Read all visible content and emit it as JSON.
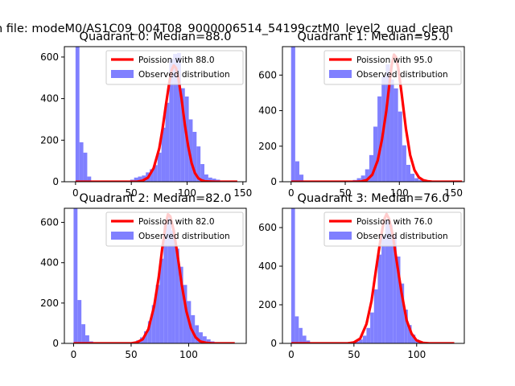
{
  "figure": {
    "suptitle": "n file: modeM0/AS1C09_004T08_9000006514_54199cztM0_level2_quad_clean"
  },
  "colors": {
    "curve": "#ff0000",
    "histogram": "#8080ff",
    "axes": "#000000",
    "background": "#ffffff"
  },
  "chart_data": [
    {
      "type": "bar",
      "title": "Quadrant 0: Median=88.0",
      "legend_position": "top-right",
      "legend": [
        "Poission with 88.0",
        "Observed distribution"
      ],
      "xlim": [
        -10,
        153
      ],
      "ylim": [
        0,
        650
      ],
      "xticks": [
        0,
        50,
        100,
        150
      ],
      "yticks": [
        0,
        200,
        400,
        600
      ],
      "poisson_mean": 88.0,
      "hist": {
        "bin_start": 0,
        "bin_width": 3.5,
        "values": [
          650,
          190,
          140,
          25,
          0,
          0,
          0,
          0,
          0,
          0,
          0,
          0,
          0,
          0,
          10,
          20,
          25,
          30,
          45,
          60,
          80,
          140,
          260,
          380,
          590,
          615,
          620,
          450,
          410,
          300,
          240,
          170,
          85,
          35,
          20,
          15,
          10,
          5,
          5,
          0,
          0
        ]
      },
      "curve": {
        "x": [
          0,
          55,
          60,
          65,
          70,
          75,
          78,
          81,
          84,
          86,
          88,
          90,
          92,
          95,
          98,
          101,
          104,
          107,
          110,
          113,
          116,
          120,
          125,
          145
        ],
        "y": [
          0,
          0,
          5,
          20,
          65,
          160,
          255,
          370,
          475,
          535,
          560,
          547,
          505,
          400,
          275,
          170,
          90,
          42,
          17,
          7,
          2,
          1,
          0,
          0
        ]
      }
    },
    {
      "type": "bar",
      "title": "Quadrant 1: Median=95.0",
      "legend_position": "top-right",
      "legend": [
        "Poission with 95.0",
        "Observed distribution"
      ],
      "xlim": [
        -8,
        160
      ],
      "ylim": [
        0,
        760
      ],
      "xticks": [
        0,
        50,
        100,
        150
      ],
      "yticks": [
        0,
        200,
        400,
        600
      ],
      "poisson_mean": 95.0,
      "hist": {
        "bin_start": 0,
        "bin_width": 3.8,
        "values": [
          760,
          115,
          40,
          0,
          0,
          0,
          0,
          0,
          0,
          0,
          0,
          0,
          0,
          0,
          5,
          10,
          20,
          35,
          70,
          150,
          310,
          480,
          590,
          660,
          575,
          525,
          395,
          205,
          95,
          45,
          20,
          10,
          5,
          5,
          0,
          0,
          0,
          0,
          0,
          0,
          0,
          0
        ]
      },
      "curve": {
        "x": [
          0,
          60,
          65,
          70,
          75,
          80,
          84,
          88,
          91,
          93,
          95,
          97,
          99,
          102,
          106,
          110,
          114,
          118,
          122,
          126,
          130,
          135,
          158
        ],
        "y": [
          0,
          0,
          2,
          10,
          40,
          120,
          240,
          400,
          560,
          660,
          715,
          700,
          640,
          500,
          300,
          150,
          65,
          25,
          9,
          3,
          1,
          0,
          0
        ]
      }
    },
    {
      "type": "bar",
      "title": "Quadrant 2: Median=82.0",
      "legend_position": "top-right",
      "legend": [
        "Poission with 82.0",
        "Observed distribution"
      ],
      "xlim": [
        -8,
        150
      ],
      "ylim": [
        0,
        670
      ],
      "xticks": [
        0,
        50,
        100
      ],
      "yticks": [
        0,
        200,
        400,
        600
      ],
      "poisson_mean": 82.0,
      "hist": {
        "bin_start": 0,
        "bin_width": 3.4,
        "values": [
          670,
          215,
          95,
          40,
          10,
          0,
          0,
          0,
          0,
          0,
          0,
          0,
          0,
          0,
          0,
          5,
          15,
          30,
          60,
          110,
          190,
          290,
          420,
          590,
          630,
          560,
          470,
          380,
          290,
          210,
          140,
          90,
          55,
          35,
          20,
          10,
          5,
          5,
          0,
          0,
          0
        ]
      },
      "curve": {
        "x": [
          0,
          50,
          55,
          60,
          65,
          70,
          74,
          77,
          80,
          82,
          84,
          87,
          90,
          94,
          98,
          102,
          106,
          110,
          115,
          120,
          140
        ],
        "y": [
          0,
          0,
          5,
          20,
          70,
          185,
          330,
          470,
          590,
          640,
          630,
          560,
          450,
          290,
          160,
          75,
          30,
          10,
          3,
          0,
          0
        ]
      }
    },
    {
      "type": "bar",
      "title": "Quadrant 3: Median=76.0",
      "legend_position": "top-right",
      "legend": [
        "Poission with 76.0",
        "Observed distribution"
      ],
      "xlim": [
        -7,
        138
      ],
      "ylim": [
        0,
        700
      ],
      "xticks": [
        0,
        50,
        100
      ],
      "yticks": [
        0,
        200,
        400,
        600
      ],
      "poisson_mean": 76.0,
      "hist": {
        "bin_start": 0,
        "bin_width": 3.0,
        "values": [
          700,
          140,
          80,
          40,
          15,
          5,
          0,
          0,
          0,
          0,
          0,
          0,
          0,
          0,
          0,
          0,
          5,
          10,
          20,
          40,
          80,
          160,
          280,
          460,
          560,
          640,
          615,
          560,
          450,
          310,
          175,
          95,
          45,
          20,
          10,
          5,
          5,
          0,
          0,
          0,
          0,
          0,
          0
        ]
      },
      "curve": {
        "x": [
          0,
          45,
          50,
          55,
          60,
          64,
          68,
          71,
          74,
          76,
          78,
          81,
          84,
          88,
          92,
          96,
          100,
          105,
          110,
          130
        ],
        "y": [
          0,
          0,
          5,
          25,
          100,
          220,
          400,
          530,
          640,
          670,
          645,
          560,
          430,
          260,
          120,
          50,
          15,
          3,
          0,
          0
        ]
      }
    }
  ]
}
